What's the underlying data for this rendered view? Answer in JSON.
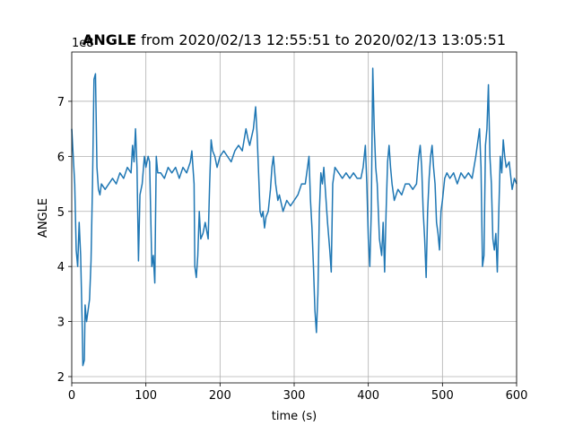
{
  "chart_data": {
    "type": "line",
    "title": {
      "bold": "ANGLE",
      "rest": "from 2020/02/13 12:55:51 to 2020/02/13 13:05:51"
    },
    "offset_label": "1e8",
    "xlabel": "time (s)",
    "ylabel": "ANGLE",
    "xlim": [
      0,
      600
    ],
    "ylim": [
      1.886,
      7.895
    ],
    "xticks": [
      0,
      100,
      200,
      300,
      400,
      500,
      600
    ],
    "yticks": [
      2,
      3,
      4,
      5,
      6,
      7
    ],
    "grid": true,
    "x": [
      0,
      2,
      4,
      6,
      8,
      10,
      12,
      14,
      15,
      17,
      18,
      20,
      22,
      24,
      26,
      28,
      30,
      32,
      34,
      36,
      38,
      40,
      45,
      50,
      55,
      60,
      65,
      70,
      75,
      80,
      82,
      84,
      86,
      88,
      90,
      92,
      95,
      98,
      100,
      103,
      105,
      108,
      110,
      112,
      114,
      116,
      120,
      125,
      130,
      135,
      140,
      145,
      150,
      155,
      160,
      162,
      165,
      166,
      168,
      170,
      172,
      174,
      177,
      180,
      184,
      186,
      188,
      190,
      193,
      196,
      200,
      205,
      210,
      215,
      220,
      225,
      230,
      235,
      238,
      240,
      245,
      248,
      250,
      252,
      254,
      256,
      258,
      260,
      262,
      265,
      268,
      270,
      272,
      275,
      278,
      280,
      285,
      290,
      295,
      300,
      305,
      310,
      315,
      318,
      320,
      322,
      324,
      326,
      328,
      330,
      332,
      334,
      336,
      338,
      340,
      345,
      348,
      350,
      352,
      355,
      360,
      365,
      370,
      375,
      380,
      385,
      390,
      393,
      396,
      398,
      400,
      402,
      404,
      406,
      408,
      410,
      412,
      415,
      418,
      420,
      422,
      424,
      426,
      428,
      430,
      432,
      435,
      440,
      445,
      450,
      455,
      460,
      465,
      468,
      470,
      472,
      474,
      476,
      478,
      480,
      482,
      484,
      486,
      488,
      490,
      492,
      494,
      496,
      498,
      500,
      503,
      506,
      510,
      515,
      520,
      525,
      530,
      535,
      540,
      545,
      548,
      550,
      552,
      554,
      556,
      558,
      560,
      562,
      564,
      566,
      568,
      570,
      572,
      574,
      576,
      578,
      580,
      582,
      584,
      586,
      590,
      594,
      597,
      600
    ],
    "series": [
      {
        "color": "#1f77b4",
        "values": [
          6.5,
          6.0,
          5.5,
          4.3,
          4.0,
          4.8,
          4.2,
          3.0,
          2.2,
          2.3,
          3.3,
          3.0,
          3.2,
          3.4,
          4.1,
          5.5,
          7.4,
          7.5,
          5.8,
          5.4,
          5.3,
          5.5,
          5.4,
          5.5,
          5.6,
          5.5,
          5.7,
          5.6,
          5.8,
          5.7,
          6.2,
          5.9,
          6.5,
          5.8,
          4.1,
          5.3,
          5.5,
          6.0,
          5.8,
          6.0,
          5.9,
          4.0,
          4.2,
          3.7,
          6.0,
          5.7,
          5.7,
          5.6,
          5.8,
          5.7,
          5.8,
          5.6,
          5.8,
          5.7,
          5.9,
          6.1,
          5.5,
          4.0,
          3.8,
          4.2,
          5.0,
          4.5,
          4.6,
          4.8,
          4.5,
          5.5,
          6.3,
          6.1,
          6.0,
          5.8,
          6.0,
          6.1,
          6.0,
          5.9,
          6.1,
          6.2,
          6.1,
          6.5,
          6.3,
          6.2,
          6.5,
          6.9,
          6.4,
          5.7,
          5.0,
          4.9,
          5.0,
          4.7,
          4.9,
          5.0,
          5.4,
          5.8,
          6.0,
          5.5,
          5.2,
          5.3,
          5.0,
          5.2,
          5.1,
          5.2,
          5.3,
          5.5,
          5.5,
          5.8,
          6.0,
          5.2,
          4.7,
          4.0,
          3.2,
          2.8,
          3.5,
          5.0,
          5.7,
          5.5,
          5.8,
          4.8,
          4.3,
          3.9,
          5.5,
          5.8,
          5.7,
          5.6,
          5.7,
          5.6,
          5.7,
          5.6,
          5.6,
          5.8,
          6.2,
          5.5,
          4.5,
          4.0,
          5.0,
          7.6,
          6.5,
          5.8,
          5.5,
          4.5,
          4.2,
          4.8,
          3.9,
          5.0,
          5.9,
          6.2,
          5.8,
          5.5,
          5.2,
          5.4,
          5.3,
          5.5,
          5.5,
          5.4,
          5.5,
          6.0,
          6.2,
          5.8,
          5.0,
          4.5,
          3.8,
          5.0,
          5.6,
          6.0,
          6.2,
          5.8,
          5.5,
          4.8,
          4.6,
          4.3,
          5.0,
          5.2,
          5.6,
          5.7,
          5.6,
          5.7,
          5.5,
          5.7,
          5.6,
          5.7,
          5.6,
          6.0,
          6.3,
          6.5,
          5.8,
          4.0,
          4.2,
          6.2,
          6.5,
          7.3,
          6.0,
          5.5,
          4.5,
          4.3,
          4.6,
          3.9,
          5.0,
          6.0,
          5.7,
          6.3,
          6.0,
          5.8,
          5.9,
          5.4,
          5.6,
          5.5
        ]
      }
    ]
  }
}
